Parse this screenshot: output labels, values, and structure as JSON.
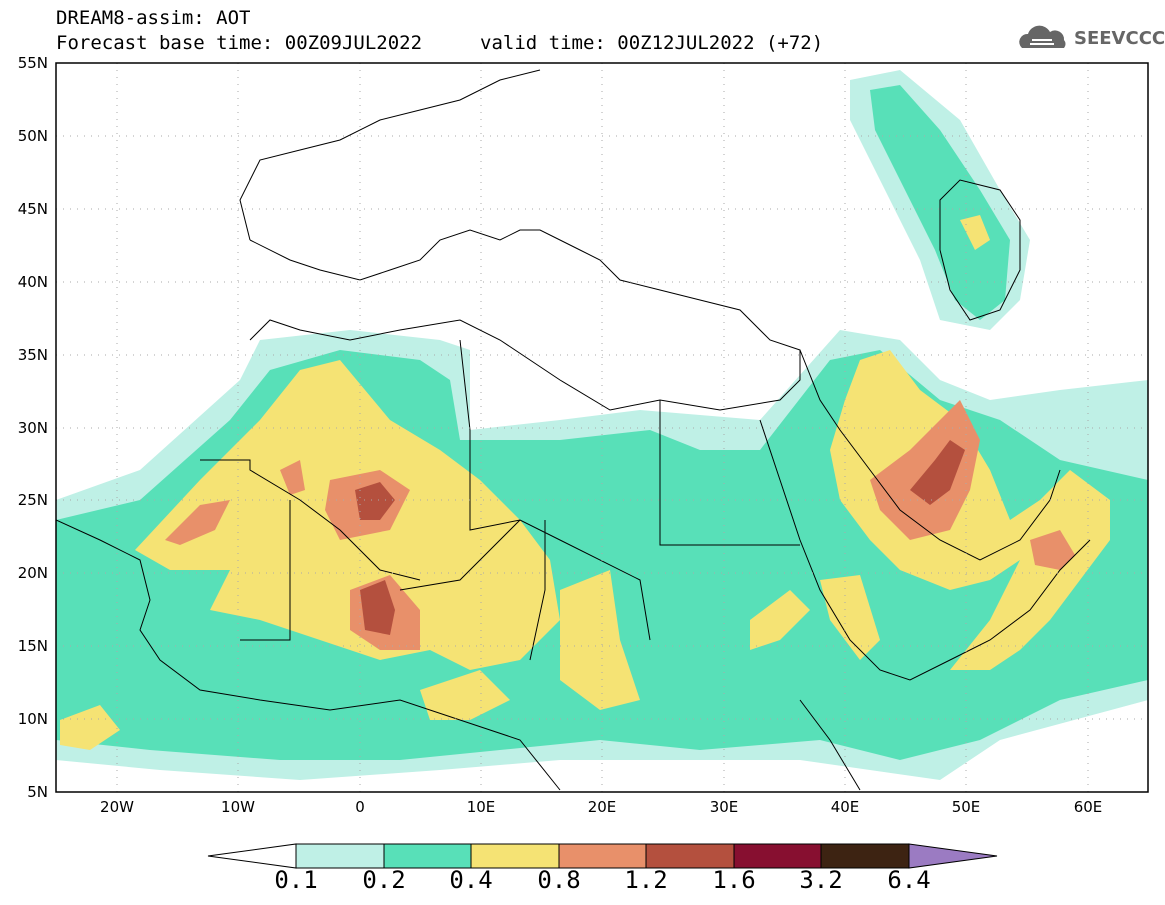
{
  "header": {
    "title": "DREAM8-assim: AOT",
    "base_time": "Forecast base time: 00Z09JUL2022",
    "valid_time": "valid time: 00Z12JUL2022 (+72)"
  },
  "logo": {
    "text": "SEEVCCC",
    "icon": "cloud-icon"
  },
  "map": {
    "lat_labels": [
      "55N",
      "50N",
      "45N",
      "40N",
      "35N",
      "30N",
      "25N",
      "20N",
      "15N",
      "10N",
      "5N"
    ],
    "lon_labels": [
      "20W",
      "10W",
      "0",
      "10E",
      "20E",
      "30E",
      "40E",
      "50E",
      "60E"
    ],
    "extent": {
      "lon": [
        -25,
        65
      ],
      "lat": [
        5,
        55
      ]
    }
  },
  "colorbar": {
    "labels": [
      "0.1",
      "0.2",
      "0.4",
      "0.8",
      "1.2",
      "1.6",
      "3.2",
      "6.4"
    ],
    "colors": [
      "#bff0e6",
      "#58e0b8",
      "#f5e374",
      "#e8906a",
      "#b4503e",
      "#870f30",
      "#3d2312",
      "#9b7bc2"
    ]
  }
}
